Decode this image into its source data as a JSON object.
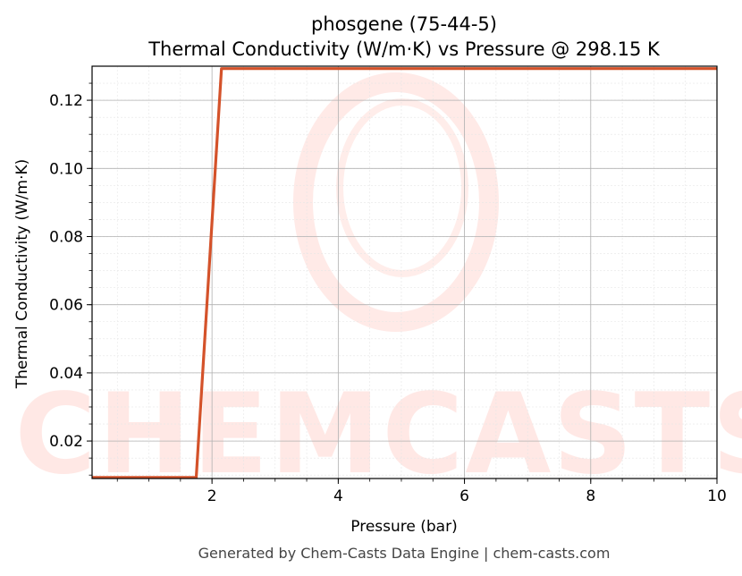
{
  "chart_data": {
    "type": "line",
    "title_line1": "phosgene (75-44-5)",
    "title_line2": "Thermal Conductivity (W/m·K) vs Pressure @ 298.15 K",
    "xlabel": "Pressure (bar)",
    "ylabel": "Thermal Conductivity (W/m·K)",
    "xlim": [
      0.1,
      10
    ],
    "ylim": [
      0.009,
      0.13
    ],
    "xticks": [
      2,
      4,
      6,
      8,
      10
    ],
    "xtick_labels": [
      "2",
      "4",
      "6",
      "8",
      "10"
    ],
    "yticks": [
      0.02,
      0.04,
      0.06,
      0.08,
      0.1,
      0.12
    ],
    "ytick_labels": [
      "0.02",
      "0.04",
      "0.06",
      "0.08",
      "0.10",
      "0.12"
    ],
    "grid": true,
    "series": [
      {
        "color": "#d4522a",
        "x": [
          0.1,
          1.75,
          2.15,
          10
        ],
        "y": [
          0.0093,
          0.0093,
          0.1293,
          0.1293
        ]
      }
    ]
  },
  "footer": "Generated by Chem-Casts Data Engine | chem-casts.com",
  "watermark": "CHEMCASTS"
}
